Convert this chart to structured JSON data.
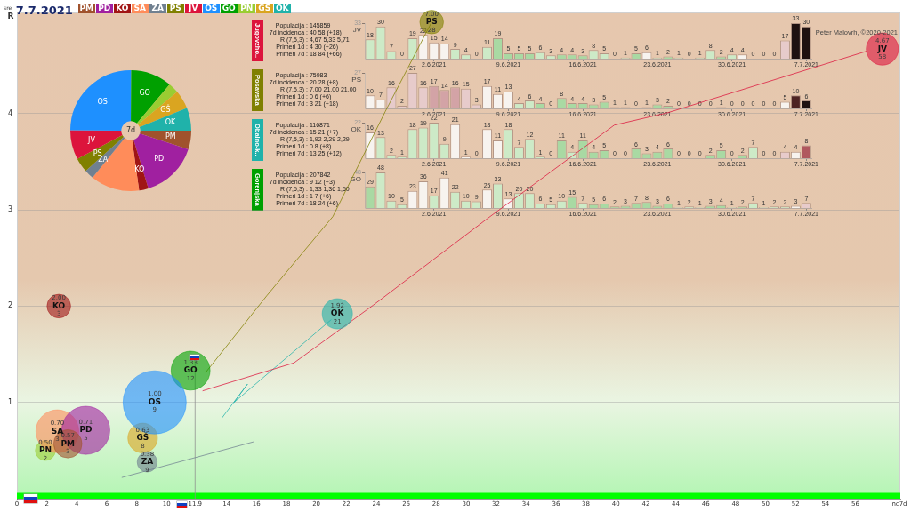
{
  "chart_data": [
    {
      "type": "bubble",
      "title": "$^{sre}$ 7.7.2021",
      "xlabel": "inc7d",
      "ylabel": "R",
      "xlim": [
        0,
        59
      ],
      "xticks": [
        0,
        2,
        4,
        6,
        8,
        10,
        11.9,
        14,
        16,
        18,
        20,
        22,
        24,
        26,
        28,
        30,
        32,
        34,
        36,
        38,
        40,
        42,
        44,
        46,
        48,
        50,
        52,
        54,
        56
      ],
      "ylim": [
        0,
        5.05
      ],
      "yticks": [
        1,
        2,
        3,
        4
      ],
      "grid": "y",
      "legend": "top left",
      "bands": [
        {
          "axis": "y",
          "from": 0,
          "to": 0.06,
          "color": "#00ff00"
        }
      ],
      "annotations": [
        "Peter Malovrh, ©2020-2021"
      ],
      "series": [
        {
          "name": "PM",
          "color": "#a0522d",
          "x": [
            3.4
          ],
          "values": [
            0.57
          ],
          "sizes": [
            0.2
          ],
          "value_labels": [
            "0.57\nPM\n3"
          ]
        },
        {
          "name": "PD",
          "color": "#a020a0",
          "x": [
            4.6
          ],
          "values": [
            0.71
          ],
          "sizes": [
            0.58
          ],
          "value_labels": [
            "0.71\nPD\n5"
          ]
        },
        {
          "name": "KO",
          "color": "#a01515",
          "x": [
            2.8
          ],
          "values": [
            2.0
          ],
          "sizes": [
            0.14
          ],
          "value_labels": [
            "2.00\nKO\n3"
          ]
        },
        {
          "name": "SA",
          "color": "#ff8c5a",
          "x": [
            2.7
          ],
          "values": [
            0.7
          ],
          "sizes": [
            0.46
          ],
          "value_labels": [
            "0.70\nSA\n3"
          ]
        },
        {
          "name": "ZA",
          "color": "#708090",
          "x": [
            8.7
          ],
          "values": [
            0.38
          ],
          "sizes": [
            0.1
          ],
          "value_labels": [
            "0.38\nZA\n9"
          ]
        },
        {
          "name": "PS",
          "color": "#808000",
          "x": [
            27.7
          ],
          "values": [
            4.95
          ],
          "sizes": [
            0.14
          ],
          "value_labels": [
            "7.00\nPS\n28"
          ]
        },
        {
          "name": "JV",
          "color": "#dc143c",
          "x": [
            57.8
          ],
          "values": [
            4.67
          ],
          "sizes": [
            0.26
          ],
          "value_labels": [
            "4.67\nJV\n58"
          ]
        },
        {
          "name": "OS",
          "color": "#1e90ff",
          "x": [
            9.2
          ],
          "values": [
            1.0
          ],
          "sizes": [
            1
          ],
          "value_labels": [
            "1.00\nOS\n9"
          ]
        },
        {
          "name": "GO",
          "color": "#00a000",
          "x": [
            11.6
          ],
          "values": [
            1.33
          ],
          "sizes": [
            0.38
          ],
          "value_labels": [
            "1.33\nGO\n12"
          ]
        },
        {
          "name": "PN",
          "color": "#9acd32",
          "x": [
            1.9
          ],
          "values": [
            0.5
          ],
          "sizes": [
            0.1
          ],
          "value_labels": [
            "0.50\nPN\n2"
          ]
        },
        {
          "name": "GŠ",
          "color": "#daa520",
          "x": [
            8.4
          ],
          "values": [
            0.63
          ],
          "sizes": [
            0.22
          ],
          "value_labels": [
            "0.63\nGŠ\n8"
          ]
        },
        {
          "name": "OK",
          "color": "#20b2aa",
          "x": [
            21.4
          ],
          "values": [
            1.92
          ],
          "sizes": [
            0.23
          ],
          "value_labels": [
            "1.92\nOK\n21"
          ]
        },
        {
          "type": "line",
          "color": "#dc143c",
          "x": [
            12.4,
            18.5,
            23.8,
            31.6,
            39.9,
            43.5,
            56.8
          ],
          "values": [
            1.12,
            1.41,
            2.01,
            2.93,
            3.88,
            4.01,
            4.65
          ]
        },
        {
          "type": "line",
          "color": "#808000",
          "x": [
            12.6,
            16.7,
            21.1,
            24.6,
            26.4,
            27.7
          ],
          "values": [
            1.31,
            2.11,
            2.93,
            4.02,
            4.56,
            4.95
          ]
        },
        {
          "type": "line",
          "color": "#20b2aa",
          "x": [
            13.7,
            15.4,
            14.5,
            21.0
          ],
          "values": [
            0.84,
            1.19,
            1.0,
            1.86
          ]
        },
        {
          "type": "line",
          "color": "#708090",
          "x": [
            7.0,
            15.8
          ],
          "values": [
            0.22,
            0.59
          ]
        },
        {
          "type": "line",
          "color": "#8c8c8c",
          "x": [
            11.9,
            11.9
          ],
          "values": [
            0,
            1.47
          ]
        }
      ]
    },
    {
      "type": "donut",
      "title": "7d",
      "categories": [
        "PM",
        "PD",
        "KO",
        null,
        "ZA",
        "PS",
        "JV",
        "OS",
        "GO",
        null,
        "GŠ",
        "OK"
      ],
      "values": [
        5.0,
        15.3,
        2.5,
        13.1,
        2.5,
        3.9,
        7.8,
        25.0,
        11.0,
        2.8,
        5.0,
        6.1
      ],
      "colors": [
        "#a0522d",
        "#a020a0",
        "#a01515",
        "#ff8c5a",
        "#708090",
        "#808000",
        "#dc143c",
        "#1e90ff",
        "#00a000",
        "#9acd32",
        "#daa520",
        "#20b2aa"
      ]
    },
    {
      "type": "bar",
      "ylabel": "Jugovzho..",
      "annotations": [
        "Populacija : 145859",
        "7d incidenca : 40 58 (+18)",
        "R (7,5,3) : 4,67 5,33 5,71",
        "Primeri 1d : 4 30 (+26)",
        "Primeri 7d : 18 84 (+66)"
      ],
      "categories": [
        null,
        null,
        null,
        null,
        null,
        null,
        "2.6.2021",
        null,
        null,
        null,
        null,
        null,
        null,
        "9.6.2021",
        null,
        null,
        null,
        null,
        null,
        null,
        "16.6.2021",
        null,
        null,
        null,
        null,
        null,
        null,
        "23.6.2021",
        null,
        null,
        null,
        null,
        null,
        null,
        "30.6.2021",
        null,
        null,
        null,
        null,
        null,
        null,
        "7.7.2021"
      ],
      "ylim": [
        0,
        33
      ],
      "yticks": [
        33
      ],
      "data_labels": true,
      "series": [
        {
          "name": "JV",
          "color": "#dc143c",
          "values": [
            18,
            30,
            7,
            0,
            19,
            22,
            15,
            14,
            9,
            4,
            0,
            11,
            19,
            5,
            5,
            5,
            6,
            3,
            4,
            4,
            3,
            8,
            5,
            0,
            1,
            5,
            6,
            1,
            2,
            1,
            0,
            1,
            8,
            2,
            4,
            4,
            0,
            0,
            0,
            17,
            33,
            30
          ],
          "colors": [
            "#cdeac7",
            "#cdeac7",
            "#cdeac7",
            "#cdeac7",
            "#cdeac7",
            "#f7f3ef",
            "#f7f3ef",
            "#f7f3ef",
            "#cdeac7",
            "#cdeac7",
            "#cdeac7",
            "#cdeac7",
            "#a9d9a3",
            "#a9d9a3",
            "#a9d9a3",
            "#a9d9a3",
            "#cdeac7",
            "#cdeac7",
            "#a9d9a3",
            "#a9d9a3",
            "#a9d9a3",
            "#cdeac7",
            "#cdeac7",
            "#cdeac7",
            "#cdeac7",
            "#a9d9a3",
            "#f7f3ef",
            "#cdeac7",
            "#a9d9a3",
            "#cdeac7",
            "#cdeac7",
            "#cdeac7",
            "#cdeac7",
            "#a9d9a3",
            "#cdeac7",
            "#f7f3ef",
            "#cdeac7",
            "#cdeac7",
            "#cdeac7",
            "#e7cbcb",
            "#1e1111",
            "#1e1111"
          ]
        }
      ]
    },
    {
      "type": "bar",
      "ylabel": "Posavska",
      "annotations": [
        "Populacija : 75983",
        "7d incidenca : 20 28 (+8)",
        "R (7,5,3) : 7,00 21,00 21,00",
        "Primeri 1d : 0 6 (+6)",
        "Primeri 7d : 3 21 (+18)"
      ],
      "categories": [
        null,
        null,
        null,
        null,
        null,
        null,
        "2.6.2021",
        null,
        null,
        null,
        null,
        null,
        null,
        "9.6.2021",
        null,
        null,
        null,
        null,
        null,
        null,
        "16.6.2021",
        null,
        null,
        null,
        null,
        null,
        null,
        "23.6.2021",
        null,
        null,
        null,
        null,
        null,
        null,
        "30.6.2021",
        null,
        null,
        null,
        null,
        null,
        null,
        "7.7.2021"
      ],
      "ylim": [
        0,
        27
      ],
      "yticks": [
        27
      ],
      "data_labels": true,
      "series": [
        {
          "name": "PS",
          "color": "#808000",
          "values": [
            10,
            7,
            16,
            2,
            27,
            16,
            17,
            14,
            16,
            15,
            3,
            17,
            11,
            13,
            4,
            6,
            4,
            0,
            8,
            4,
            4,
            3,
            5,
            1,
            1,
            0,
            1,
            3,
            2,
            0,
            0,
            0,
            0,
            1,
            0,
            0,
            0,
            0,
            0,
            5,
            10,
            6
          ],
          "colors": [
            "#f7f3ef",
            "#f7f3ef",
            "#e7cbcb",
            "#e7cbcb",
            "#e7cbcb",
            "#e7cbcb",
            "#d3a3a6",
            "#d3a3a6",
            "#d3a3a6",
            "#e7cbcb",
            "#e7cbcb",
            "#f7f3ef",
            "#f7f3ef",
            "#f7f3ef",
            "#cdeac7",
            "#cdeac7",
            "#a9d9a3",
            "#cdeac7",
            "#a9d9a3",
            "#a9d9a3",
            "#a9d9a3",
            "#a9d9a3",
            "#a9d9a3",
            "#cdeac7",
            "#cdeac7",
            "#cdeac7",
            "#cdeac7",
            "#a9d9a3",
            "#a9d9a3",
            "#cdeac7",
            "#cdeac7",
            "#cdeac7",
            "#cdeac7",
            "#cdeac7",
            "#cdeac7",
            "#cdeac7",
            "#cdeac7",
            "#cdeac7",
            "#cdeac7",
            "#f7f3ef",
            "#4d2323",
            "#1e1111"
          ]
        }
      ]
    },
    {
      "type": "bar",
      "ylabel": "Obalno-k..",
      "annotations": [
        "Populacija : 116871",
        "7d incidenca : 15 21 (+7)",
        "R (7,5,3) : 1,92 2,29 2,29",
        "Primeri 1d : 0 8 (+8)",
        "Primeri 7d : 13 25 (+12)"
      ],
      "categories": [
        null,
        null,
        null,
        null,
        null,
        null,
        "2.6.2021",
        null,
        null,
        null,
        null,
        null,
        null,
        "9.6.2021",
        null,
        null,
        null,
        null,
        null,
        null,
        "16.6.2021",
        null,
        null,
        null,
        null,
        null,
        null,
        "23.6.2021",
        null,
        null,
        null,
        null,
        null,
        null,
        "30.6.2021",
        null,
        null,
        null,
        null,
        null,
        null,
        "7.7.2021"
      ],
      "ylim": [
        0,
        22
      ],
      "yticks": [
        22
      ],
      "data_labels": true,
      "series": [
        {
          "name": "OK",
          "color": "#20b2aa",
          "values": [
            16,
            13,
            2,
            1,
            18,
            19,
            22,
            9,
            21,
            1,
            0,
            18,
            11,
            18,
            7,
            12,
            1,
            0,
            11,
            4,
            11,
            4,
            5,
            0,
            0,
            6,
            3,
            4,
            6,
            0,
            0,
            0,
            2,
            5,
            0,
            2,
            7,
            0,
            0,
            4,
            4,
            8
          ],
          "colors": [
            "#f7f3ef",
            "#cdeac7",
            "#cdeac7",
            "#cdeac7",
            "#cdeac7",
            "#cdeac7",
            "#cdeac7",
            "#cdeac7",
            "#f7f3ef",
            "#f7f3ef",
            "#cdeac7",
            "#f7f3ef",
            "#f7f3ef",
            "#cdeac7",
            "#cdeac7",
            "#cdeac7",
            "#cdeac7",
            "#cdeac7",
            "#a9d9a3",
            "#cdeac7",
            "#a9d9a3",
            "#a9d9a3",
            "#a9d9a3",
            "#cdeac7",
            "#cdeac7",
            "#a9d9a3",
            "#a9d9a3",
            "#a9d9a3",
            "#a9d9a3",
            "#cdeac7",
            "#cdeac7",
            "#cdeac7",
            "#a9d9a3",
            "#a9d9a3",
            "#cdeac7",
            "#a9d9a3",
            "#cdeac7",
            "#cdeac7",
            "#cdeac7",
            "#e7cbcb",
            "#f7f3ef",
            "#b0585e"
          ]
        }
      ]
    },
    {
      "type": "bar",
      "ylabel": "Gorenjska",
      "annotations": [
        "Populacija : 207842",
        "7d incidenca : 9 12 (+3)",
        "R (7,5,3) : 1,33 1,36 1,50",
        "Primeri 1d : 1 7 (+6)",
        "Primeri 7d : 18 24 (+6)"
      ],
      "categories": [
        null,
        null,
        null,
        null,
        null,
        null,
        "2.6.2021",
        null,
        null,
        null,
        null,
        null,
        null,
        "9.6.2021",
        null,
        null,
        null,
        null,
        null,
        null,
        "16.6.2021",
        null,
        null,
        null,
        null,
        null,
        null,
        "23.6.2021",
        null,
        null,
        null,
        null,
        null,
        null,
        "30.6.2021",
        null,
        null,
        null,
        null,
        null,
        null,
        "7.7.2021"
      ],
      "ylim": [
        0,
        48
      ],
      "yticks": [
        48
      ],
      "data_labels": true,
      "series": [
        {
          "name": "GO",
          "color": "#00a000",
          "values": [
            29,
            48,
            10,
            5,
            23,
            36,
            17,
            41,
            22,
            10,
            9,
            25,
            33,
            13,
            20,
            20,
            6,
            5,
            10,
            15,
            7,
            5,
            6,
            2,
            3,
            7,
            8,
            3,
            6,
            1,
            2,
            1,
            3,
            4,
            1,
            2,
            7,
            1,
            2,
            2,
            3,
            7
          ],
          "colors": [
            "#a9d9a3",
            "#cdeac7",
            "#cdeac7",
            "#cdeac7",
            "#f7f3ef",
            "#f7f3ef",
            "#cdeac7",
            "#f7f3ef",
            "#cdeac7",
            "#cdeac7",
            "#cdeac7",
            "#f7f3ef",
            "#cdeac7",
            "#f7f3ef",
            "#cdeac7",
            "#cdeac7",
            "#cdeac7",
            "#cdeac7",
            "#cdeac7",
            "#a9d9a3",
            "#cdeac7",
            "#a9d9a3",
            "#a9d9a3",
            "#a9d9a3",
            "#a9d9a3",
            "#a9d9a3",
            "#a9d9a3",
            "#a9d9a3",
            "#a9d9a3",
            "#cdeac7",
            "#cdeac7",
            "#cdeac7",
            "#a9d9a3",
            "#a9d9a3",
            "#cdeac7",
            "#a9d9a3",
            "#cdeac7",
            "#cdeac7",
            "#cdeac7",
            "#cdeac7",
            "#f7f3ef",
            "#e7cbcb"
          ]
        }
      ]
    }
  ]
}
